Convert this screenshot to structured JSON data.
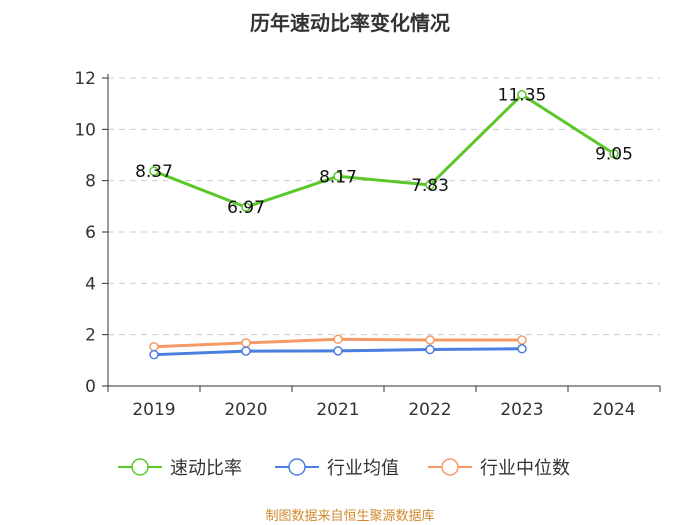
{
  "chart_data": {
    "type": "line",
    "title": "历年速动比率变化情况",
    "categories": [
      "2019",
      "2020",
      "2021",
      "2022",
      "2023",
      "2024"
    ],
    "ylim": [
      0,
      12
    ],
    "yticks": [
      0,
      2,
      4,
      6,
      8,
      10,
      12
    ],
    "grid": true,
    "legend_position": "bottom",
    "series": [
      {
        "name": "速动比率",
        "color": "#5ac82a",
        "values": [
          8.37,
          6.97,
          8.17,
          7.83,
          11.35,
          9.05
        ],
        "labels": [
          "8.37",
          "6.97",
          "8.17",
          "7.83",
          "11.35",
          "9.05"
        ]
      },
      {
        "name": "行业均值",
        "color": "#4a7fe0",
        "values": [
          1.22,
          1.36,
          1.37,
          1.42,
          1.45,
          null
        ]
      },
      {
        "name": "行业中位数",
        "color": "#f59a66",
        "values": [
          1.53,
          1.68,
          1.82,
          1.79,
          1.79,
          null
        ]
      }
    ]
  },
  "source": "制图数据来自恒生聚源数据库"
}
